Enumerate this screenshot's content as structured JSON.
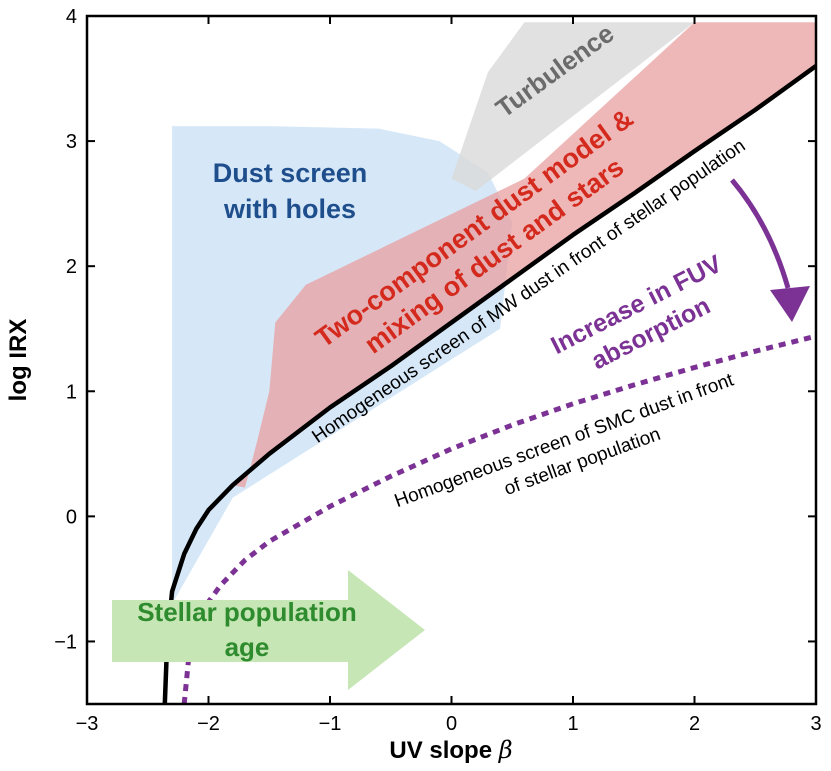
{
  "chart_data": {
    "type": "line",
    "xlabel": "UV slope",
    "xlabel_symbol": "β",
    "ylabel": "log IRX",
    "xlim": [
      -3,
      3
    ],
    "ylim": [
      -1.5,
      4
    ],
    "xticks": [
      -3,
      -2,
      -1,
      0,
      1,
      2,
      3
    ],
    "xtick_labels": [
      "−3",
      "−2",
      "−1",
      "0",
      "1",
      "2",
      "3"
    ],
    "yticks": [
      -1,
      0,
      1,
      2,
      3,
      4
    ],
    "ytick_labels": [
      "−1",
      "0",
      "1",
      "2",
      "3",
      "4"
    ],
    "grid": false,
    "series": [
      {
        "name": "Homogeneous screen of MW dust in front of stellar population",
        "color": "#000000",
        "style": "solid",
        "x": [
          -2.36,
          -2.34,
          -2.3,
          -2.2,
          -2.1,
          -2.0,
          -1.8,
          -1.5,
          -1.0,
          -0.5,
          0.0,
          0.5,
          1.0,
          1.5,
          2.0,
          2.5,
          3.0
        ],
        "y": [
          -1.5,
          -1.0,
          -0.6,
          -0.3,
          -0.1,
          0.05,
          0.25,
          0.5,
          0.87,
          1.2,
          1.55,
          1.9,
          2.25,
          2.58,
          2.92,
          3.25,
          3.6
        ]
      },
      {
        "name": "Homogeneous screen of SMC dust in front of stellar population",
        "color": "#7b3294",
        "style": "dotted",
        "x": [
          -2.2,
          -2.15,
          -2.05,
          -1.9,
          -1.7,
          -1.5,
          -1.0,
          -0.5,
          0.0,
          0.5,
          1.0,
          1.5,
          2.0,
          2.5,
          3.0
        ],
        "y": [
          -1.5,
          -1.0,
          -0.75,
          -0.55,
          -0.35,
          -0.2,
          0.08,
          0.32,
          0.54,
          0.73,
          0.9,
          1.05,
          1.19,
          1.32,
          1.44
        ]
      }
    ],
    "regions": [
      {
        "label": "Dust screen with holes",
        "color": "#cfe4f7",
        "label_color": "#1f4e8c",
        "x": [
          -2.3,
          -2.3,
          -1.5,
          -0.6,
          -0.1,
          0.3,
          0.5,
          0.4,
          -1.8,
          -2.3
        ],
        "y": [
          -0.7,
          3.12,
          3.12,
          3.1,
          3.0,
          2.75,
          2.35,
          1.5,
          0.15,
          -0.7
        ]
      },
      {
        "label": "Two-component dust model & mixing of dust and stars",
        "color": "#e8a0a0",
        "label_color": "#d42a1e",
        "x": [
          -1.7,
          -1.6,
          -1.5,
          -1.45,
          -1.2,
          0.6,
          2.0,
          3.0,
          3.0,
          2.0,
          1.0,
          0.0,
          -1.0,
          -1.5,
          -1.8
        ],
        "y": [
          0.23,
          0.6,
          1.0,
          1.55,
          1.85,
          2.7,
          3.95,
          3.95,
          3.6,
          2.92,
          2.25,
          1.55,
          0.87,
          0.5,
          0.25
        ]
      },
      {
        "label": "Turbulence",
        "color": "#d9d9d9",
        "label_color": "#6b6b6b",
        "x": [
          0.0,
          0.3,
          0.6,
          2.0,
          0.2,
          0.0
        ],
        "y": [
          2.7,
          3.55,
          3.95,
          3.95,
          2.6,
          2.7
        ]
      }
    ],
    "annotations": [
      {
        "text": "Increase in FUV absorption",
        "color": "#7b3294"
      },
      {
        "text": "Stellar population age",
        "color": "#2e8b2e",
        "arrow_color": "#c7e6b5"
      }
    ]
  },
  "labels": {
    "dust_screen_line1": "Dust screen",
    "dust_screen_line2": "with holes",
    "two_comp_line1": "Two-component dust model &",
    "two_comp_line2": "mixing of dust and stars",
    "turbulence": "Turbulence",
    "mw_curve": "Homogeneous screen of MW dust in front of stellar population",
    "smc_line1": "Homogeneous screen of SMC dust in front",
    "smc_line2": "of stellar population",
    "fuv_line1": "Increase in FUV",
    "fuv_line2": "absorption",
    "age_line1": "Stellar population",
    "age_line2": "age"
  }
}
